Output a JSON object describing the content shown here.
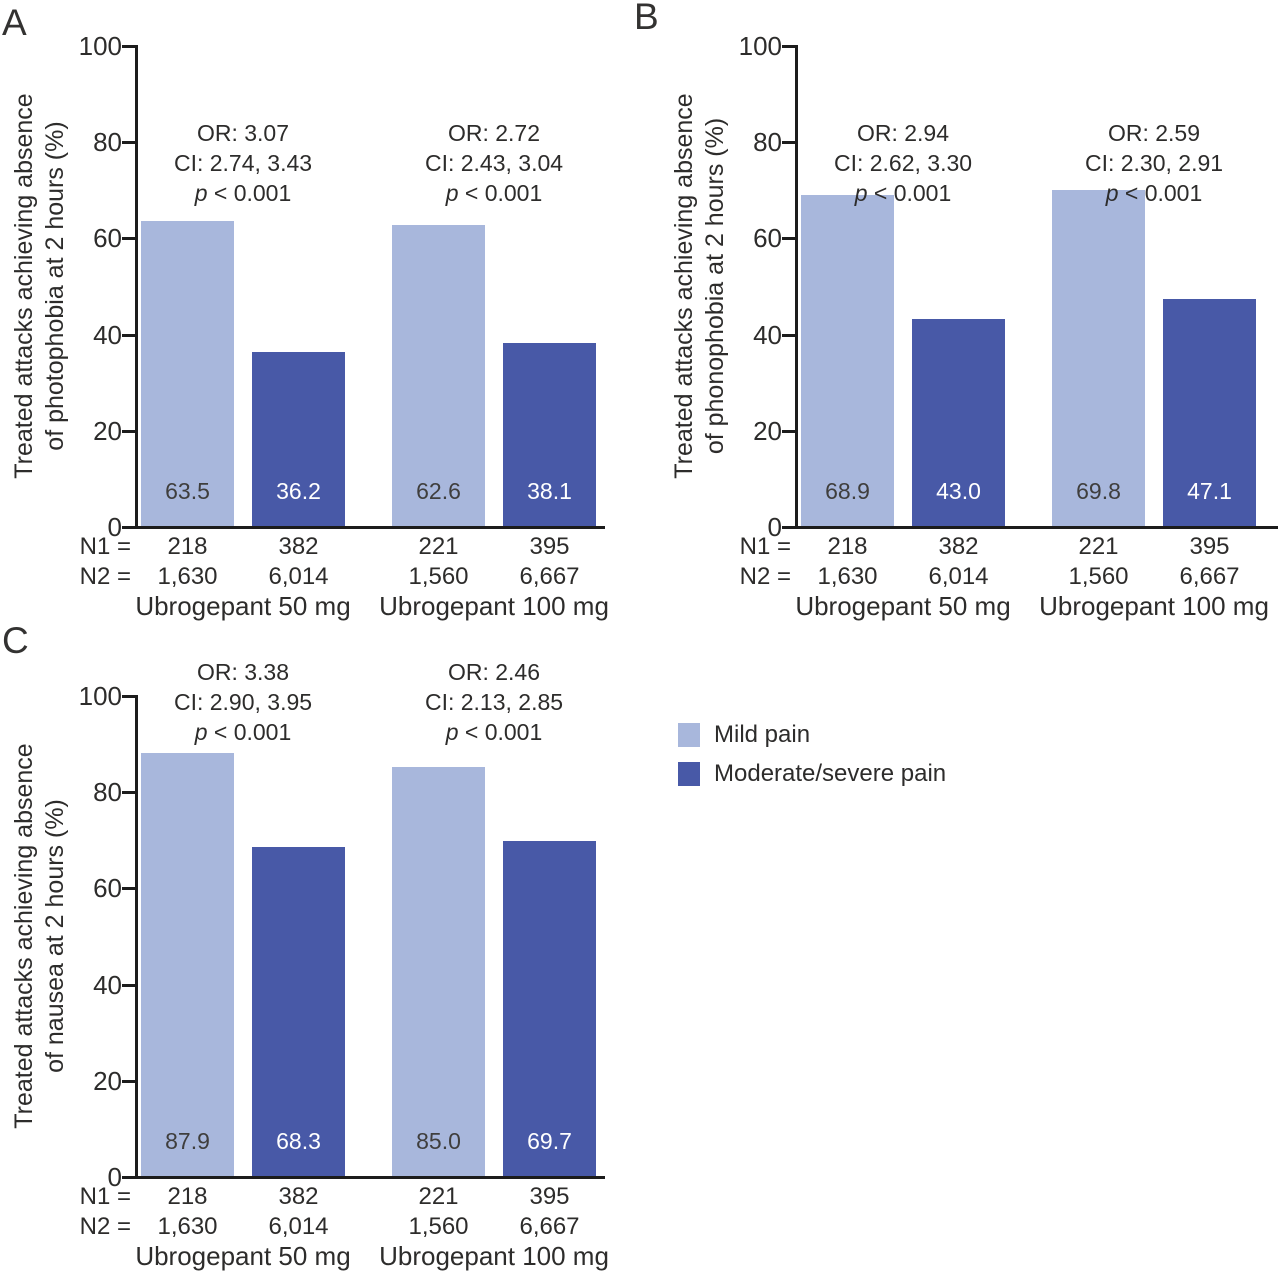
{
  "legend": {
    "items": [
      {
        "label": "Mild pain",
        "color": "#a8b7dc"
      },
      {
        "label": "Moderate/severe pain",
        "color": "#4859a7"
      }
    ]
  },
  "n_row_labels": {
    "n1": "N1 =",
    "n2": "N2 ="
  },
  "chart_data": [
    {
      "type": "bar",
      "panel_letter": "A",
      "ylabel_lines": [
        "Treated attacks achieving absence",
        "of photophobia at 2 hours (%)"
      ],
      "ylim": [
        0,
        100
      ],
      "yticks": [
        0,
        20,
        40,
        60,
        80,
        100
      ],
      "grid": false,
      "categories": [
        "Ubrogepant 50 mg",
        "Ubrogepant 100 mg"
      ],
      "series": [
        {
          "name": "Mild pain",
          "values": [
            63.5,
            62.6
          ]
        },
        {
          "name": "Moderate/severe pain",
          "values": [
            36.2,
            38.1
          ]
        }
      ],
      "bar_labels": [
        "63.5",
        "36.2",
        "62.6",
        "38.1"
      ],
      "annotations": [
        [
          "OR: 3.07",
          "CI: 2.74, 3.43",
          "p < 0.001"
        ],
        [
          "OR: 2.72",
          "CI: 2.43, 3.04",
          "p < 0.001"
        ]
      ],
      "n1": [
        "218",
        "382",
        "221",
        "395"
      ],
      "n2": [
        "1,630",
        "6,014",
        "1,560",
        "6,667"
      ]
    },
    {
      "type": "bar",
      "panel_letter": "B",
      "ylabel_lines": [
        "Treated attacks achieving absence",
        "of phonophobia at 2 hours (%)"
      ],
      "ylim": [
        0,
        100
      ],
      "yticks": [
        0,
        20,
        40,
        60,
        80,
        100
      ],
      "grid": false,
      "categories": [
        "Ubrogepant 50 mg",
        "Ubrogepant 100 mg"
      ],
      "series": [
        {
          "name": "Mild pain",
          "values": [
            68.9,
            69.8
          ]
        },
        {
          "name": "Moderate/severe pain",
          "values": [
            43.0,
            47.1
          ]
        }
      ],
      "bar_labels": [
        "68.9",
        "43.0",
        "69.8",
        "47.1"
      ],
      "annotations": [
        [
          "OR: 2.94",
          "CI: 2.62, 3.30",
          "p < 0.001"
        ],
        [
          "OR: 2.59",
          "CI: 2.30, 2.91",
          "p < 0.001"
        ]
      ],
      "n1": [
        "218",
        "382",
        "221",
        "395"
      ],
      "n2": [
        "1,630",
        "6,014",
        "1,560",
        "6,667"
      ]
    },
    {
      "type": "bar",
      "panel_letter": "C",
      "ylabel_lines": [
        "Treated attacks achieving absence",
        "of nausea at 2 hours (%)"
      ],
      "ylim": [
        0,
        100
      ],
      "yticks": [
        0,
        20,
        40,
        60,
        80,
        100
      ],
      "grid": false,
      "categories": [
        "Ubrogepant 50 mg",
        "Ubrogepant 100 mg"
      ],
      "series": [
        {
          "name": "Mild pain",
          "values": [
            87.9,
            85.0
          ]
        },
        {
          "name": "Moderate/severe pain",
          "values": [
            68.3,
            69.7
          ]
        }
      ],
      "bar_labels": [
        "87.9",
        "68.3",
        "85.0",
        "69.7"
      ],
      "annotations": [
        [
          "OR: 3.38",
          "CI: 2.90, 3.95",
          "p < 0.001"
        ],
        [
          "OR: 2.46",
          "CI: 2.13, 2.85",
          "p < 0.001"
        ]
      ],
      "n1": [
        "218",
        "382",
        "221",
        "395"
      ],
      "n2": [
        "1,630",
        "6,014",
        "1,560",
        "6,667"
      ]
    }
  ]
}
